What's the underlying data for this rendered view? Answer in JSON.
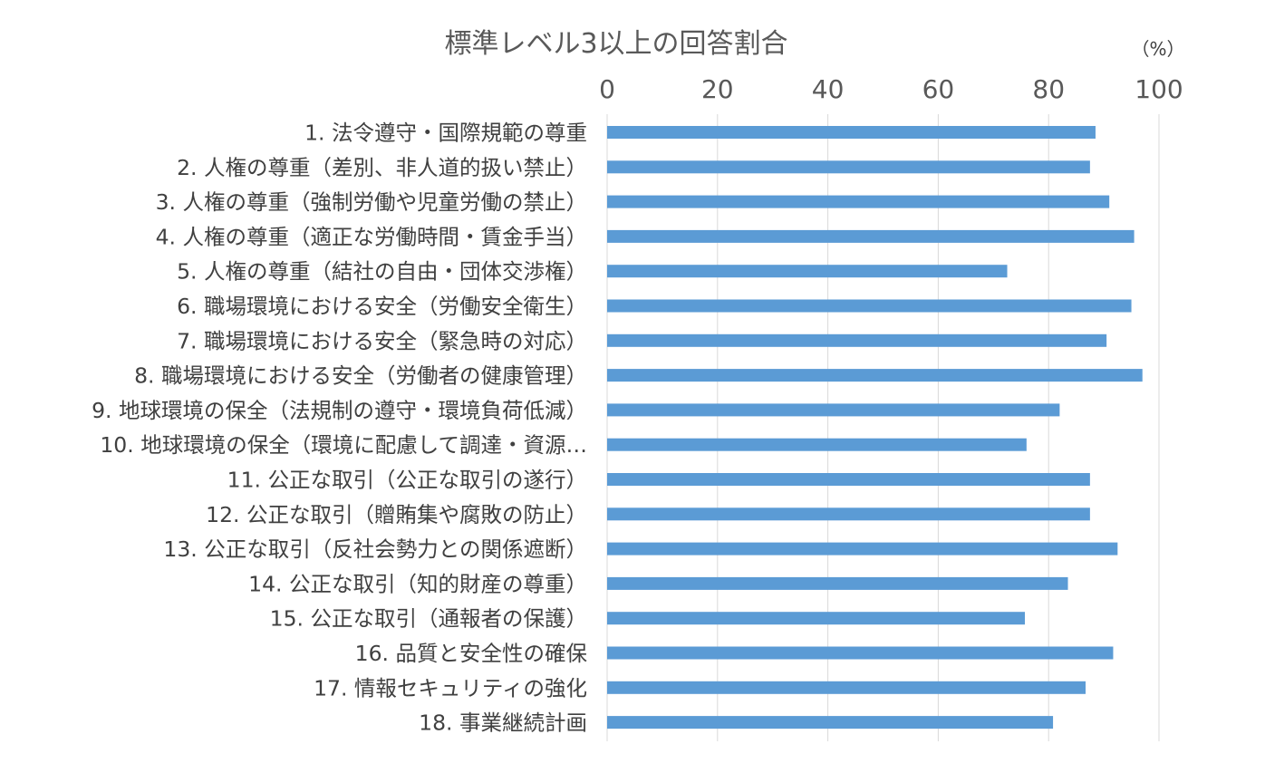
{
  "chart_data": {
    "type": "bar",
    "orientation": "horizontal",
    "title": "標準レベル3以上の回答割合",
    "unit_label": "（%）",
    "xlim": [
      0,
      100
    ],
    "x_ticks": [
      "0",
      "20",
      "40",
      "60",
      "80",
      "100"
    ],
    "grid": true,
    "legend": "none",
    "bar_color": "#5b9bd5",
    "categories": [
      "1. 法令遵守・国際規範の尊重",
      "2. 人権の尊重（差別、非人道的扱い禁止）",
      "3. 人権の尊重（強制労働や児童労働の禁止）",
      "4. 人権の尊重（適正な労働時間・賃金手当）",
      "5. 人権の尊重（結社の自由・団体交渉権）",
      "6. 職場環境における安全（労働安全衛生）",
      "7. 職場環境における安全（緊急時の対応）",
      "8. 職場環境における安全（労働者の健康管理）",
      "9. 地球環境の保全（法規制の遵守・環境負荷低減）",
      "10. 地球環境の保全（環境に配慮して調達・資源…",
      "11. 公正な取引（公正な取引の遂行）",
      "12. 公正な取引（贈賄集や腐敗の防止）",
      "13. 公正な取引（反社会勢力との関係遮断）",
      "14. 公正な取引（知的財産の尊重）",
      "15. 公正な取引（通報者の保護）",
      "16. 品質と安全性の確保",
      "17. 情報セキュリティの強化",
      "18. 事業継続計画"
    ],
    "values": [
      88.5,
      87.5,
      91,
      95.5,
      72.5,
      95,
      90.5,
      97,
      82,
      76,
      87.5,
      87.5,
      92.5,
      83.5,
      75.7,
      91.7,
      86.7,
      80.8
    ]
  }
}
